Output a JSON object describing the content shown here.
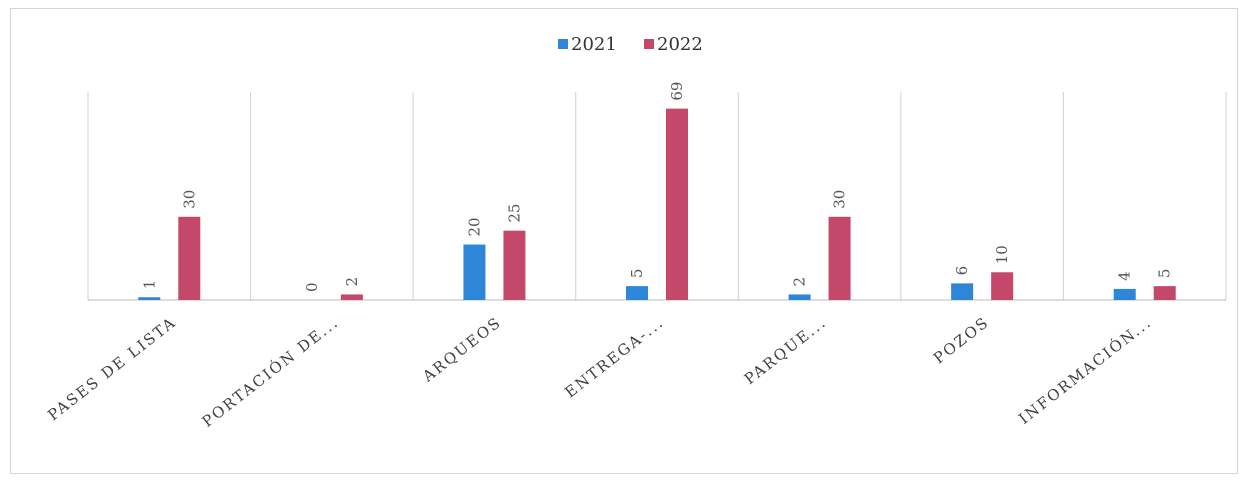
{
  "chart_data": {
    "type": "bar",
    "categories": [
      "PASES DE LISTA",
      "PORTACIÓN DE...",
      "ARQUEOS",
      "ENTREGA-...",
      "PARQUE...",
      "POZOS",
      "INFORMACIÓN..."
    ],
    "series": [
      {
        "name": "2021",
        "values": [
          1,
          0,
          20,
          5,
          2,
          6,
          4
        ],
        "color": "#2e86d8"
      },
      {
        "name": "2022",
        "values": [
          30,
          2,
          25,
          69,
          30,
          10,
          5
        ],
        "color": "#c4486a"
      }
    ],
    "ylim": [
      0,
      75
    ],
    "grid": "vertical category separators",
    "legend_position": "top-center",
    "title": "",
    "xlabel": "",
    "ylabel": ""
  }
}
